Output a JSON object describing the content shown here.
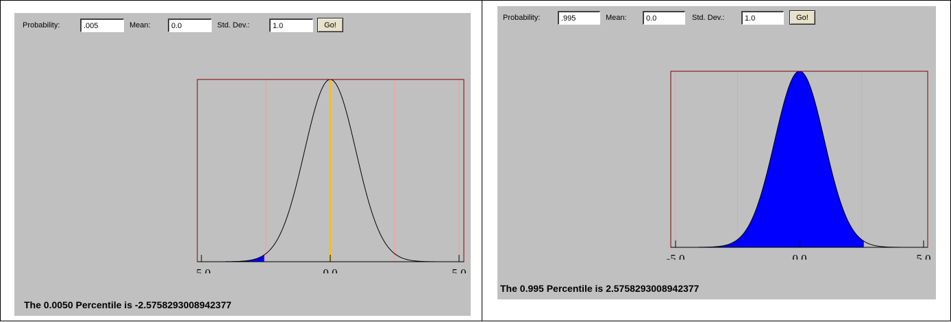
{
  "panels": [
    {
      "id": "left",
      "probability_label": "Probability:",
      "probability_value": ".005",
      "mean_label": "Mean:",
      "mean_value": "0.0",
      "std_label": "Std. Dev.:",
      "std_value": "1.0",
      "go_label": "Go!",
      "result_text": "The 0.0050 Percentile is -2.5758293008942377",
      "shade": "left-tail",
      "cutoff": -2.5758293008942377,
      "show_mean_line": true
    },
    {
      "id": "right",
      "probability_label": "Probability:",
      "probability_value": ".995",
      "mean_label": "Mean:",
      "mean_value": "0.0",
      "std_label": "Std. Dev.:",
      "std_value": "1.0",
      "go_label": "Go!",
      "result_text": "The 0.995 Percentile is 2.5758293008942377",
      "shade": "below-cutoff",
      "cutoff": 2.5758293008942377,
      "show_mean_line": false
    }
  ],
  "chart_data": [
    {
      "type": "area",
      "curve": "normal-pdf",
      "mean": 0.0,
      "std": 1.0,
      "xlim": [
        -5.0,
        5.0
      ],
      "x_tick_labels": [
        "-5.0",
        "0.0",
        "5.0"
      ],
      "shaded_region": {
        "from": -5.0,
        "to": -2.5758293008942377
      },
      "vertical_gridlines": [
        -2.5,
        2.5,
        5.0
      ],
      "colors": {
        "curve": "#000000",
        "fill": "#0000ff",
        "frame": "#800000",
        "grid": "#ff9999",
        "mean_line": "#ffc000"
      }
    },
    {
      "type": "area",
      "curve": "normal-pdf",
      "mean": 0.0,
      "std": 1.0,
      "xlim": [
        -5.0,
        5.0
      ],
      "x_tick_labels": [
        "-5.0",
        "0.0",
        "5.0"
      ],
      "shaded_region": {
        "from": -5.0,
        "to": 2.5758293008942377
      },
      "vertical_gridlines": [
        -5.0,
        -2.5,
        2.5
      ],
      "colors": {
        "curve": "#000000",
        "fill": "#0000ff",
        "frame": "#800000",
        "grid": "#ff9999"
      }
    }
  ]
}
